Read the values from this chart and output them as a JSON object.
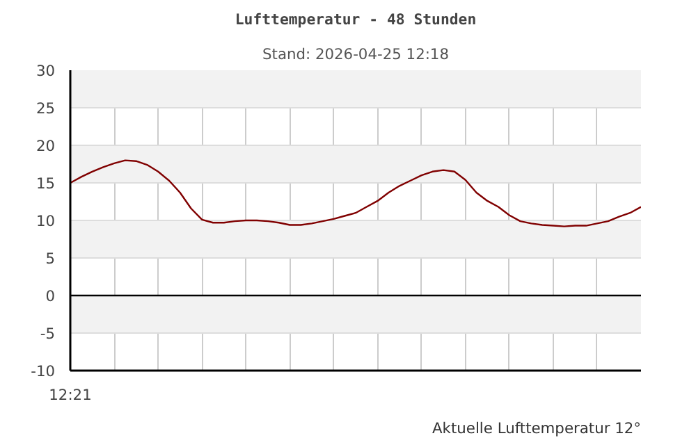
{
  "chart_data": {
    "type": "line",
    "title": "Lufttemperatur - 48 Stunden",
    "subtitle": "Stand: 2026-04-25 12:18",
    "categories": [
      "12:21",
      null,
      null,
      null,
      null,
      null,
      null,
      null,
      null,
      null,
      null,
      null,
      null,
      null,
      null,
      null,
      null,
      null,
      null,
      null,
      null,
      null,
      null,
      null,
      null,
      null,
      null,
      null,
      null,
      null,
      null,
      null,
      null,
      null,
      null,
      null,
      null,
      null,
      null,
      null,
      null,
      null,
      null,
      null,
      null,
      null,
      null,
      null,
      null,
      null,
      null,
      null,
      null
    ],
    "series": [
      {
        "color": "#800000",
        "values": [
          15,
          15.8,
          16.5,
          17.1,
          17.6,
          18.0,
          17.9,
          17.4,
          16.5,
          15.3,
          13.7,
          11.6,
          10.1,
          9.7,
          9.7,
          9.9,
          10,
          10,
          9.9,
          9.7,
          9.4,
          9.4,
          9.6,
          9.9,
          10.2,
          10.6,
          11.0,
          11.8,
          12.6,
          13.7,
          14.6,
          15.3,
          16.0,
          16.5,
          16.7,
          16.5,
          15.4,
          13.7,
          12.6,
          11.8,
          10.7,
          9.9,
          9.6,
          9.4,
          9.3,
          9.2,
          9.3,
          9.3,
          9.6,
          9.9,
          10.5,
          11.0,
          11.8
        ]
      }
    ],
    "ylim": [
      -10,
      30
    ],
    "yticks": [
      -10,
      -5,
      0,
      5,
      10,
      15,
      20,
      25,
      30
    ],
    "grid": true,
    "marker": "none",
    "line_style": "solid",
    "ref_lines": [
      {
        "axis": "y",
        "value": 0,
        "color": "#000000"
      }
    ],
    "annotations": [
      "Aktuelle Lufttemperatur 12°"
    ]
  }
}
